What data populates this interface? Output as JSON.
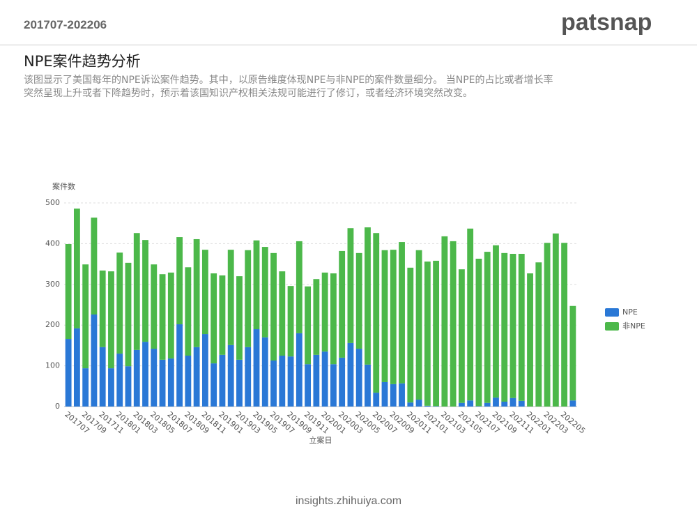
{
  "header": {
    "period": "201707-202206",
    "logo": "patsnap",
    "title": "NPE案件趋势分析",
    "description": [
      "该图显示了美国每年的NPE诉讼案件趋势。其中，以原告维度体现NPE与非NPE的案件数量细分。 当NPE的占比或者增长率",
      "突然呈现上升或者下降趋势时，预示着该国知识产权相关法规可能进行了修订，或者经济环境突然改变。"
    ]
  },
  "footer": "insights.zhihuiya.com",
  "chart_data": {
    "type": "stacked_bar",
    "y_label": "案件数",
    "x_label": "立案日",
    "categories": [
      "201707",
      null,
      "201709",
      null,
      "201711",
      null,
      "201801",
      null,
      "201803",
      null,
      "201805",
      null,
      "201807",
      null,
      "201809",
      null,
      "201811",
      null,
      "201901",
      null,
      "201903",
      null,
      "201905",
      null,
      "201907",
      null,
      "201909",
      null,
      "201911",
      null,
      "202001",
      null,
      "202003",
      null,
      "202005",
      null,
      "202007",
      null,
      "202009",
      null,
      "202011",
      null,
      "202101",
      null,
      "202103",
      null,
      "202105",
      null,
      "202107",
      null,
      "202109",
      null,
      "202111",
      null,
      "202201",
      null,
      "202203",
      null,
      "202205",
      null
    ],
    "series": [
      {
        "name": "NPE",
        "color": "#2a78d6",
        "values": [
          166,
          192,
          94,
          226,
          146,
          94,
          130,
          99,
          139,
          159,
          142,
          115,
          118,
          202,
          125,
          146,
          178,
          106,
          127,
          151,
          115,
          146,
          190,
          170,
          113,
          125,
          123,
          180,
          104,
          127,
          135,
          104,
          120,
          156,
          142,
          103,
          34,
          60,
          55,
          57,
          10,
          17,
          2,
          1,
          0,
          0,
          9,
          15,
          1,
          9,
          22,
          12,
          21,
          14,
          0,
          0,
          0,
          0,
          0,
          15
        ]
      },
      {
        "name": "非NPE",
        "color": "#4cb84a",
        "values": [
          233,
          294,
          255,
          238,
          188,
          238,
          248,
          254,
          287,
          250,
          207,
          210,
          211,
          214,
          217,
          265,
          207,
          221,
          195,
          234,
          205,
          238,
          218,
          222,
          264,
          207,
          173,
          226,
          191,
          186,
          194,
          223,
          262,
          282,
          235,
          337,
          392,
          324,
          330,
          347,
          331,
          367,
          354,
          357,
          418,
          406,
          328,
          422,
          362,
          371,
          374,
          365,
          354,
          361,
          327,
          354,
          402,
          425,
          402,
          232
        ]
      }
    ],
    "ylim": [
      0,
      500
    ],
    "yticks": [
      0,
      100,
      200,
      300,
      400,
      500
    ],
    "grid": true,
    "legend": "right"
  }
}
